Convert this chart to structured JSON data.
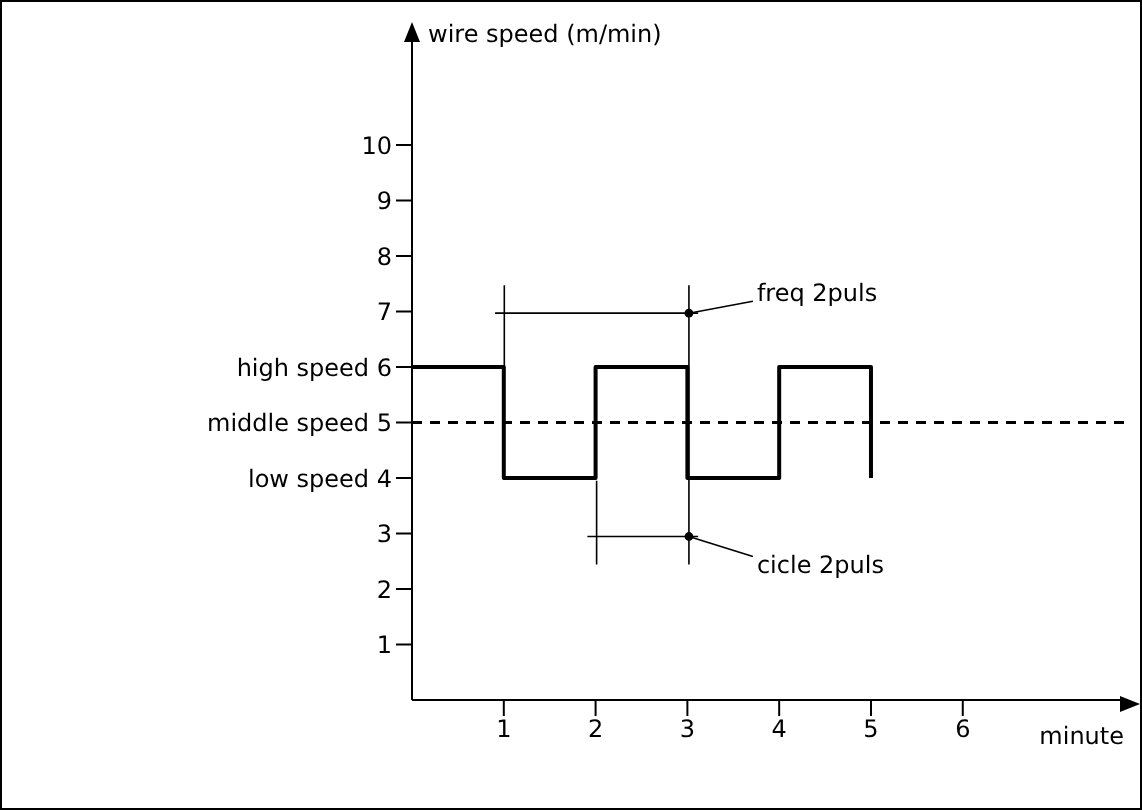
{
  "chart_data": {
    "type": "step",
    "xlabel": "minute",
    "ylabel": "wire speed (m/min)",
    "x": [
      0,
      1,
      2,
      3,
      4,
      5
    ],
    "series": [
      {
        "color": "#000000",
        "values": [
          6,
          4,
          6,
          4,
          6,
          4
        ]
      }
    ],
    "xlim": [
      0,
      7.8
    ],
    "ylim": [
      0,
      12
    ],
    "xticks": [
      1,
      2,
      3,
      4,
      5,
      6
    ],
    "yticks": [
      1,
      2,
      3,
      {
        "value": 4,
        "label": "low speed 4"
      },
      {
        "value": 5,
        "label": "middle speed 5"
      },
      {
        "value": 6,
        "label": "high speed 6"
      },
      7,
      8,
      9,
      10
    ],
    "ref_lines": [
      {
        "axis": "y",
        "value": 5,
        "label": null,
        "color": "#000000",
        "line_style": "dashed"
      }
    ],
    "annotations": [
      {
        "text": "freq 2puls",
        "x": 3,
        "y": 7
      },
      {
        "text": "cicle 2puls",
        "x": 3,
        "y": 3
      }
    ],
    "marker": "none",
    "line_style": "solid"
  }
}
